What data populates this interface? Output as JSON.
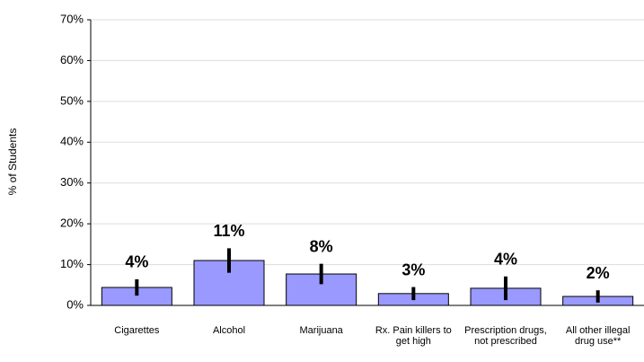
{
  "chart_data": {
    "type": "bar",
    "y_label": "% of Students",
    "categories": [
      "Cigarettes",
      "Alcohol",
      "Marijuana",
      "Rx. Pain killers to get high",
      "Prescription drugs, not prescribed",
      "All other illegal drug use**"
    ],
    "values": [
      4.4,
      11,
      7.7,
      2.9,
      4.2,
      2.2
    ],
    "errors": [
      2,
      3,
      2.5,
      1.6,
      2.9,
      1.5
    ],
    "value_labels": [
      "4%",
      "11%",
      "8%",
      "3%",
      "4%",
      "2%"
    ],
    "color": "#9999ff",
    "ylim": [
      0,
      70
    ],
    "yticks": [
      {
        "value": 0,
        "label": "0%"
      },
      {
        "value": 10,
        "label": "10%"
      },
      {
        "value": 20,
        "label": "20%"
      },
      {
        "value": 30,
        "label": "30%"
      },
      {
        "value": 40,
        "label": "40%"
      },
      {
        "value": 50,
        "label": "50%"
      },
      {
        "value": 60,
        "label": "60%"
      },
      {
        "value": 70,
        "label": "70%"
      }
    ],
    "grid": true
  }
}
